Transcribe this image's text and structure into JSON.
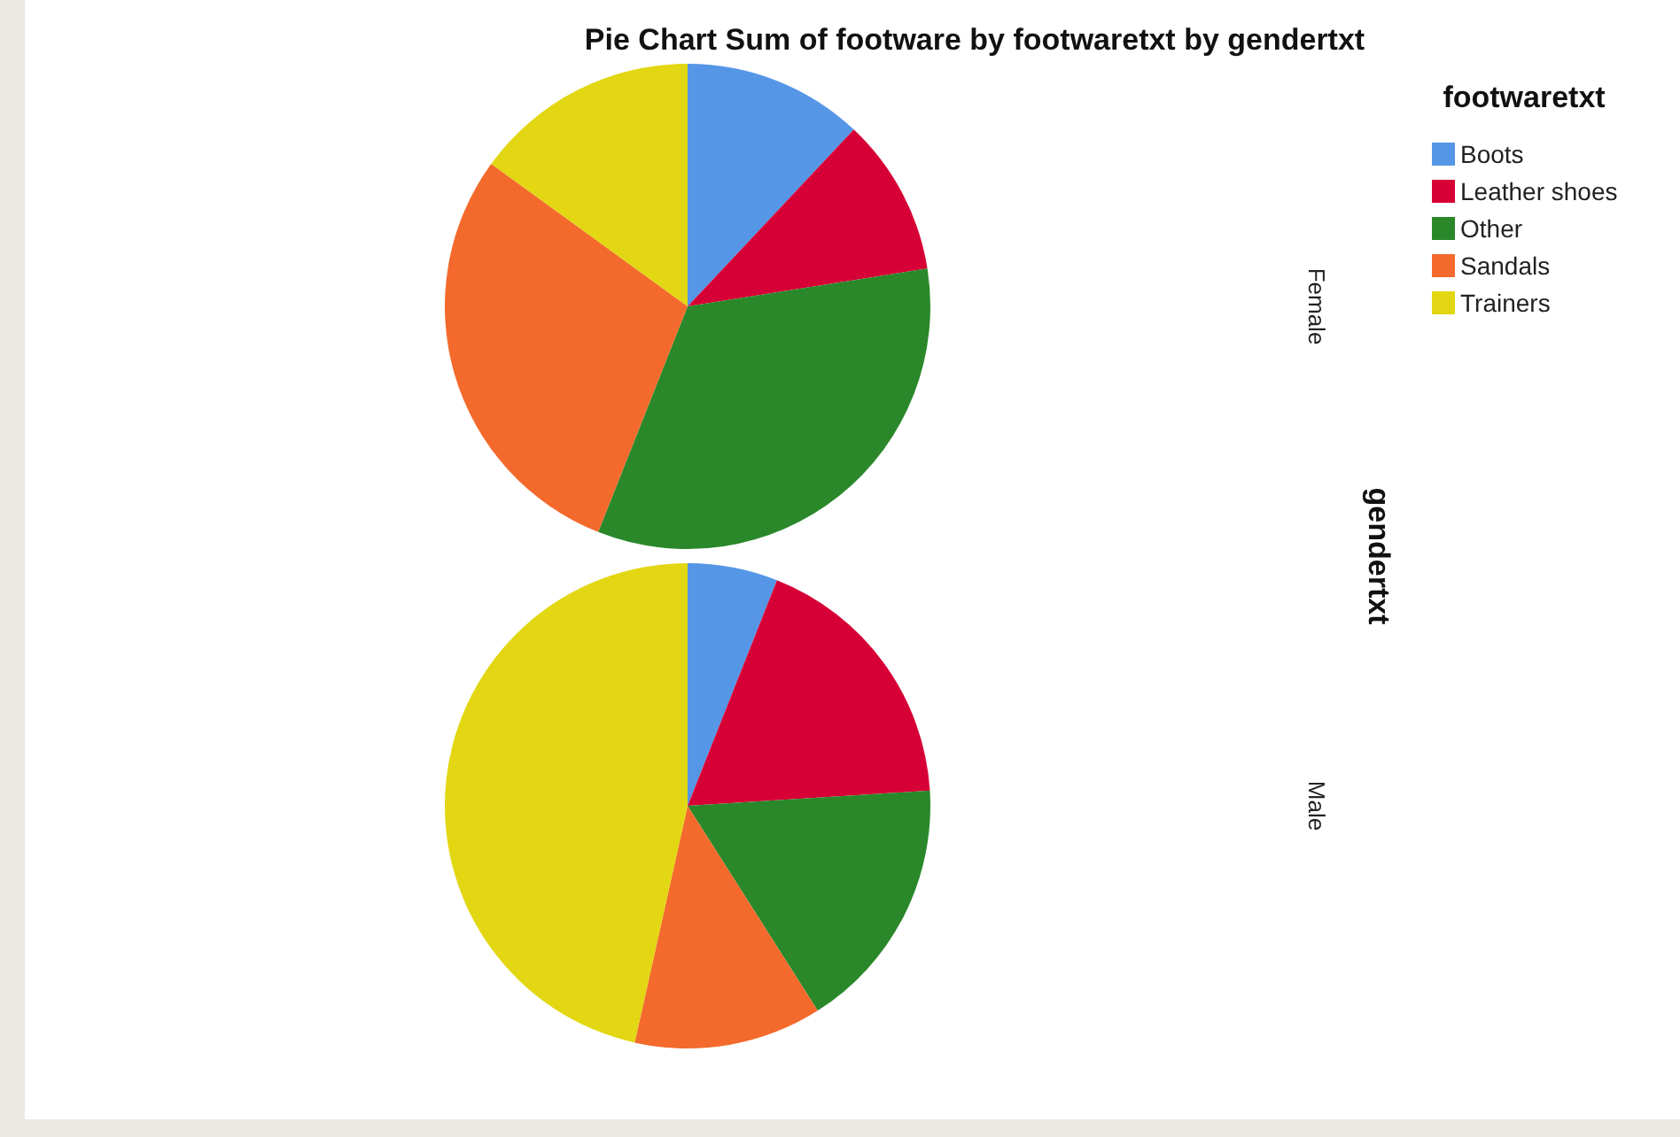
{
  "chart_data": {
    "type": "pie",
    "title": "Pie Chart Sum of footware by footwaretxt by gendertxt",
    "legend_title": "footwaretxt",
    "y2label": "gendertxt",
    "categories": [
      "Boots",
      "Leather shoes",
      "Other",
      "Sandals",
      "Trainers"
    ],
    "colors": [
      "#5596e6",
      "#d70036",
      "#2a882a",
      "#f36a2c",
      "#e2d712"
    ],
    "series": [
      {
        "name": "Female",
        "values": [
          12,
          10.5,
          33.5,
          29,
          15
        ]
      },
      {
        "name": "Male",
        "values": [
          6,
          18,
          17,
          12.5,
          46.5
        ]
      }
    ],
    "legend": "top right"
  }
}
